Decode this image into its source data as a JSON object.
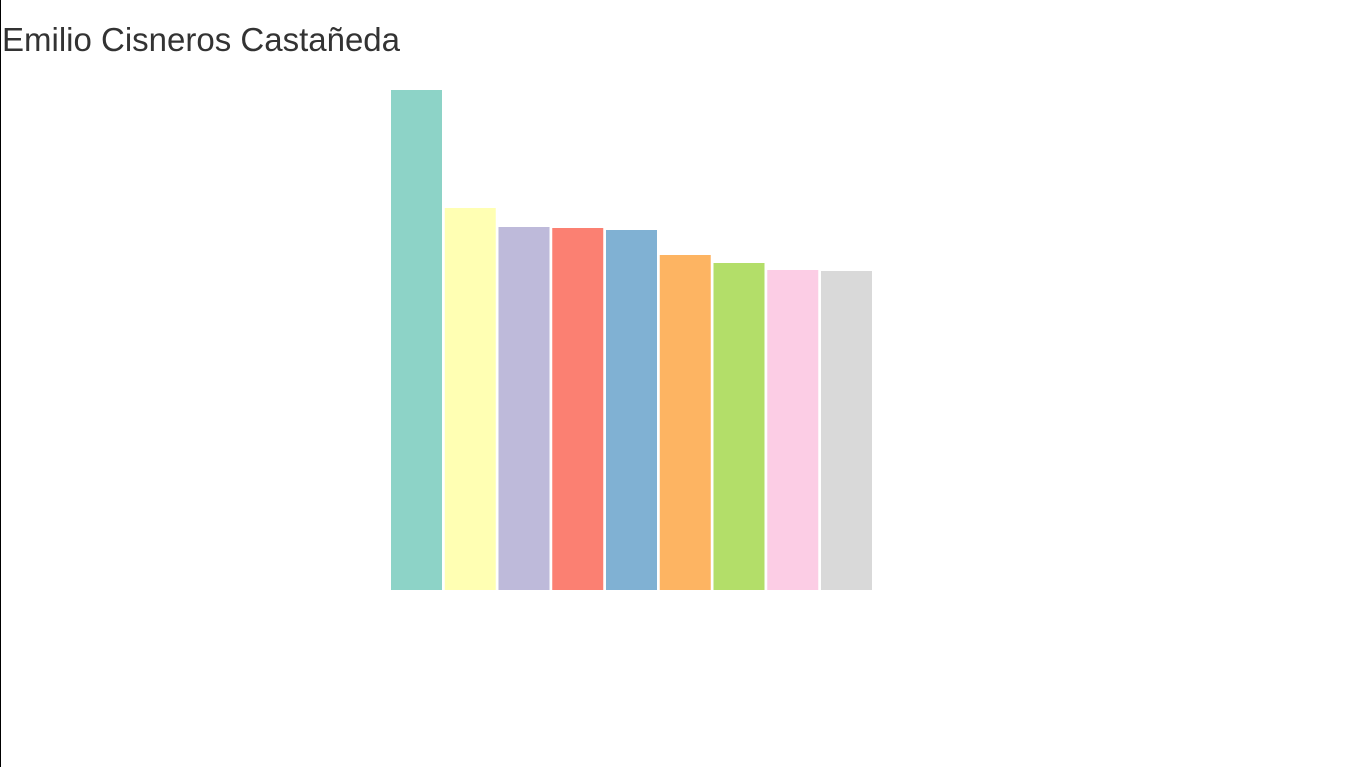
{
  "title": "Emilio Cisneros Castañeda",
  "chart_data": {
    "type": "bar",
    "title": "Emilio Cisneros Castañeda",
    "xlabel": "",
    "ylabel": "",
    "ylim": [
      0,
      100
    ],
    "grid": false,
    "legend": "none",
    "values": [
      100,
      76.4,
      72.6,
      72.4,
      72.0,
      67.0,
      65.4,
      64.0,
      63.8
    ],
    "colors": [
      "#8dd3c7",
      "#ffffb3",
      "#bebada",
      "#fb8072",
      "#80b1d3",
      "#fdb462",
      "#b3de69",
      "#fccde5",
      "#d9d9d9"
    ]
  }
}
